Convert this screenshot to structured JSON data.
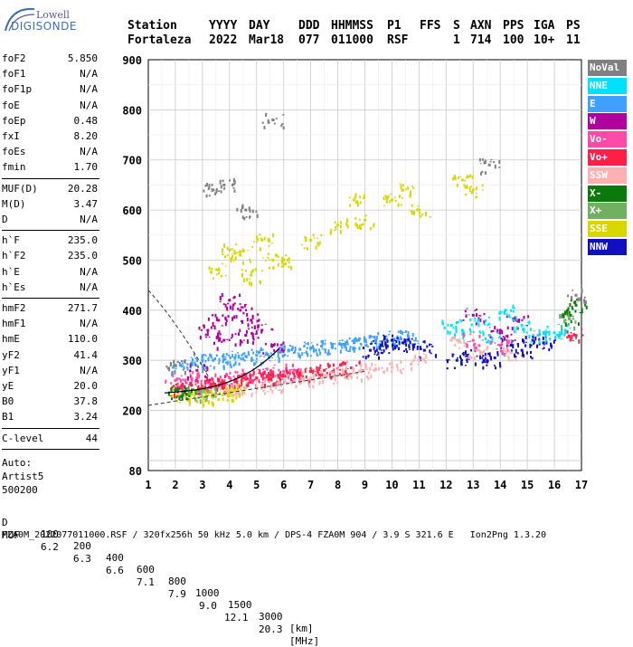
{
  "logo": {
    "line1": "Lowell",
    "line2": "DIGISONDE"
  },
  "header": {
    "row1": [
      "Station",
      "YYYY",
      "DAY",
      "DDD",
      "HHMMSS",
      "P1",
      "FFS",
      "S",
      "AXN",
      "PPS",
      "IGA",
      "PS"
    ],
    "row2": [
      "Fortaleza",
      "2022",
      "Mar18",
      "077",
      "011000",
      "RSF",
      "1",
      "714",
      "100",
      "10+",
      "11"
    ]
  },
  "params": {
    "group1": [
      {
        "k": "foF2",
        "v": "5.850"
      },
      {
        "k": "foF1",
        "v": "N/A"
      },
      {
        "k": "foF1p",
        "v": "N/A"
      },
      {
        "k": "foE",
        "v": "N/A"
      },
      {
        "k": "foEp",
        "v": "0.48"
      },
      {
        "k": "fxI",
        "v": "8.20"
      },
      {
        "k": "foEs",
        "v": "N/A"
      },
      {
        "k": "fmin",
        "v": "1.70"
      }
    ],
    "group2": [
      {
        "k": "MUF(D)",
        "v": "20.28"
      },
      {
        "k": "M(D)",
        "v": "3.47"
      },
      {
        "k": "D",
        "v": "N/A"
      }
    ],
    "group3": [
      {
        "k": "h`F",
        "v": "235.0"
      },
      {
        "k": "h`F2",
        "v": "235.0"
      },
      {
        "k": "h`E",
        "v": "N/A"
      },
      {
        "k": "h`Es",
        "v": "N/A"
      }
    ],
    "group4": [
      {
        "k": "hmF2",
        "v": "271.7"
      },
      {
        "k": "hmF1",
        "v": "N/A"
      },
      {
        "k": "hmE",
        "v": "110.0"
      },
      {
        "k": "yF2",
        "v": "41.4"
      },
      {
        "k": "yF1",
        "v": "N/A"
      },
      {
        "k": "yE",
        "v": "20.0"
      },
      {
        "k": "B0",
        "v": "37.8"
      },
      {
        "k": "B1",
        "v": "3.24"
      }
    ],
    "group5": [
      {
        "k": "C-level",
        "v": "44"
      }
    ],
    "auto": [
      "Auto:",
      "Artist5",
      "500200"
    ]
  },
  "legend": [
    {
      "label": "NoVal",
      "color": "#808080",
      "text": "#ffffff"
    },
    {
      "label": "NNE",
      "color": "#00e0ff",
      "text": "#ffffff"
    },
    {
      "label": "E",
      "color": "#3fa0ff",
      "text": "#ffffff"
    },
    {
      "label": "W",
      "color": "#b000a0",
      "text": "#ffffff"
    },
    {
      "label": "Vo-",
      "color": "#ff4aa8",
      "text": "#ffffff"
    },
    {
      "label": "Vo+",
      "color": "#ff1e46",
      "text": "#ffffff"
    },
    {
      "label": "SSW",
      "color": "#ffb0b0",
      "text": "#ffffff"
    },
    {
      "label": "X-",
      "color": "#0a7a0a",
      "text": "#ffffff"
    },
    {
      "label": "X+",
      "color": "#70b060",
      "text": "#ffffff"
    },
    {
      "label": "SSE",
      "color": "#d8d800",
      "text": "#ffffff"
    },
    {
      "label": "NNW",
      "color": "#1010c0",
      "text": "#ffffff"
    }
  ],
  "footer": {
    "row1": [
      "D",
      "100",
      "200",
      "400",
      "600",
      "800",
      "1000",
      "1500",
      "3000",
      "[km]"
    ],
    "row2": [
      "MUF",
      "6.2",
      "6.3",
      "6.6",
      "7.1",
      "7.9",
      "9.0",
      "12.1",
      "20.3",
      "[MHz]"
    ],
    "row3": "FZA0M_2022077011000.RSF / 320fx256h 50 kHz 5.0 km / DPS-4 FZA0M 904 / 3.9 S 321.6 E   Ion2Png 1.3.20"
  },
  "chart_data": {
    "type": "scatter",
    "xlim": [
      1,
      17
    ],
    "ylim": [
      80,
      900
    ],
    "x_ticks": [
      1,
      2,
      3,
      4,
      5,
      6,
      7,
      8,
      9,
      10,
      11,
      12,
      13,
      14,
      15,
      16,
      17
    ],
    "y_ticks": [
      80,
      200,
      300,
      400,
      500,
      600,
      700,
      800,
      900
    ],
    "grid": true,
    "legend_position": "right",
    "series": [
      {
        "name": "E",
        "color": "#3fa0ff",
        "points": [
          [
            2.2,
            290
          ],
          [
            2.6,
            295
          ],
          [
            3.0,
            300
          ],
          [
            3.4,
            300
          ],
          [
            3.8,
            302
          ],
          [
            4.2,
            305
          ],
          [
            4.6,
            308
          ],
          [
            5.0,
            310
          ],
          [
            5.4,
            312
          ],
          [
            5.8,
            318
          ],
          [
            6.2,
            320
          ],
          [
            6.6,
            322
          ],
          [
            7.0,
            325
          ],
          [
            7.4,
            328
          ],
          [
            7.8,
            330
          ],
          [
            8.2,
            332
          ],
          [
            8.6,
            335
          ],
          [
            9.0,
            338
          ],
          [
            9.4,
            340
          ],
          [
            9.8,
            342
          ],
          [
            10.2,
            345
          ],
          [
            10.6,
            348
          ]
        ]
      },
      {
        "name": "NNW",
        "color": "#1010c0",
        "points": [
          [
            9.2,
            320
          ],
          [
            9.6,
            330
          ],
          [
            10.0,
            340
          ],
          [
            10.4,
            335
          ],
          [
            10.8,
            330
          ],
          [
            11.2,
            320
          ],
          [
            12.4,
            300
          ],
          [
            12.8,
            310
          ],
          [
            13.4,
            300
          ],
          [
            13.8,
            305
          ],
          [
            14.4,
            330
          ],
          [
            14.8,
            320
          ],
          [
            15.2,
            340
          ],
          [
            15.6,
            335
          ]
        ]
      },
      {
        "name": "W",
        "color": "#b000a0",
        "points": [
          [
            3.2,
            360
          ],
          [
            3.6,
            380
          ],
          [
            4.0,
            420
          ],
          [
            4.4,
            400
          ],
          [
            4.8,
            380
          ],
          [
            5.2,
            360
          ],
          [
            3.8,
            340
          ],
          [
            4.6,
            350
          ],
          [
            5.6,
            330
          ],
          [
            2.8,
            280
          ],
          [
            13.0,
            390
          ],
          [
            14.0,
            360
          ],
          [
            14.6,
            380
          ]
        ]
      },
      {
        "name": "NNE",
        "color": "#00e0ff",
        "points": [
          [
            12.2,
            370
          ],
          [
            12.6,
            360
          ],
          [
            13.2,
            380
          ],
          [
            13.6,
            350
          ],
          [
            14.2,
            400
          ],
          [
            14.8,
            370
          ],
          [
            15.4,
            350
          ],
          [
            16.0,
            355
          ],
          [
            16.4,
            360
          ]
        ]
      },
      {
        "name": "Vo-",
        "color": "#ff4aa8",
        "points": [
          [
            2.0,
            260
          ],
          [
            2.4,
            255
          ],
          [
            2.8,
            265
          ],
          [
            3.2,
            255
          ],
          [
            3.6,
            262
          ],
          [
            4.0,
            265
          ],
          [
            4.4,
            268
          ],
          [
            4.8,
            270
          ],
          [
            5.2,
            272
          ],
          [
            5.6,
            275
          ],
          [
            6.0,
            278
          ],
          [
            6.4,
            280
          ],
          [
            13.0,
            340
          ],
          [
            14.0,
            330
          ]
        ]
      },
      {
        "name": "Vo+",
        "color": "#ff1e46",
        "points": [
          [
            2.2,
            245
          ],
          [
            2.6,
            250
          ],
          [
            3.0,
            248
          ],
          [
            3.4,
            252
          ],
          [
            3.8,
            255
          ],
          [
            4.2,
            258
          ],
          [
            4.6,
            262
          ],
          [
            5.0,
            265
          ],
          [
            5.4,
            268
          ],
          [
            5.8,
            270
          ],
          [
            6.2,
            272
          ],
          [
            6.6,
            275
          ],
          [
            7.0,
            278
          ],
          [
            7.5,
            280
          ],
          [
            8.0,
            283
          ],
          [
            8.5,
            285
          ],
          [
            16.8,
            350
          ]
        ]
      },
      {
        "name": "SSW",
        "color": "#ffb0b0",
        "points": [
          [
            4.0,
            240
          ],
          [
            4.6,
            245
          ],
          [
            5.2,
            250
          ],
          [
            5.8,
            255
          ],
          [
            6.4,
            260
          ],
          [
            7.0,
            265
          ],
          [
            7.6,
            270
          ],
          [
            8.2,
            274
          ],
          [
            8.8,
            278
          ],
          [
            9.4,
            282
          ],
          [
            10.0,
            286
          ],
          [
            11.0,
            300
          ],
          [
            12.4,
            340
          ],
          [
            13.2,
            320
          ],
          [
            14.4,
            315
          ]
        ]
      },
      {
        "name": "SSE",
        "color": "#d8d800",
        "points": [
          [
            2.2,
            230
          ],
          [
            2.6,
            232
          ],
          [
            3.0,
            228
          ],
          [
            3.4,
            232
          ],
          [
            3.8,
            235
          ],
          [
            4.2,
            240
          ],
          [
            3.6,
            480
          ],
          [
            4.0,
            520
          ],
          [
            4.4,
            510
          ],
          [
            4.8,
            470
          ],
          [
            5.2,
            540
          ],
          [
            5.6,
            500
          ],
          [
            7.0,
            540
          ],
          [
            8.0,
            570
          ],
          [
            9.0,
            580
          ],
          [
            10.0,
            620
          ],
          [
            10.4,
            640
          ],
          [
            11.0,
            600
          ],
          [
            8.6,
            620
          ],
          [
            6.0,
            500
          ],
          [
            12.6,
            660
          ],
          [
            13.0,
            640
          ]
        ]
      },
      {
        "name": "X-",
        "color": "#0a7a0a",
        "points": [
          [
            2.0,
            240
          ],
          [
            2.4,
            243
          ],
          [
            16.6,
            390
          ],
          [
            16.8,
            410
          ]
        ]
      },
      {
        "name": "X+",
        "color": "#70b060",
        "points": [
          [
            2.8,
            236
          ],
          [
            3.2,
            238
          ],
          [
            16.4,
            380
          ]
        ]
      },
      {
        "name": "NoVal",
        "color": "#808080",
        "points": [
          [
            2.0,
            290
          ],
          [
            3.4,
            640
          ],
          [
            3.8,
            650
          ],
          [
            4.6,
            600
          ],
          [
            5.6,
            780
          ],
          [
            13.6,
            690
          ],
          [
            16.8,
            430
          ]
        ]
      }
    ]
  }
}
